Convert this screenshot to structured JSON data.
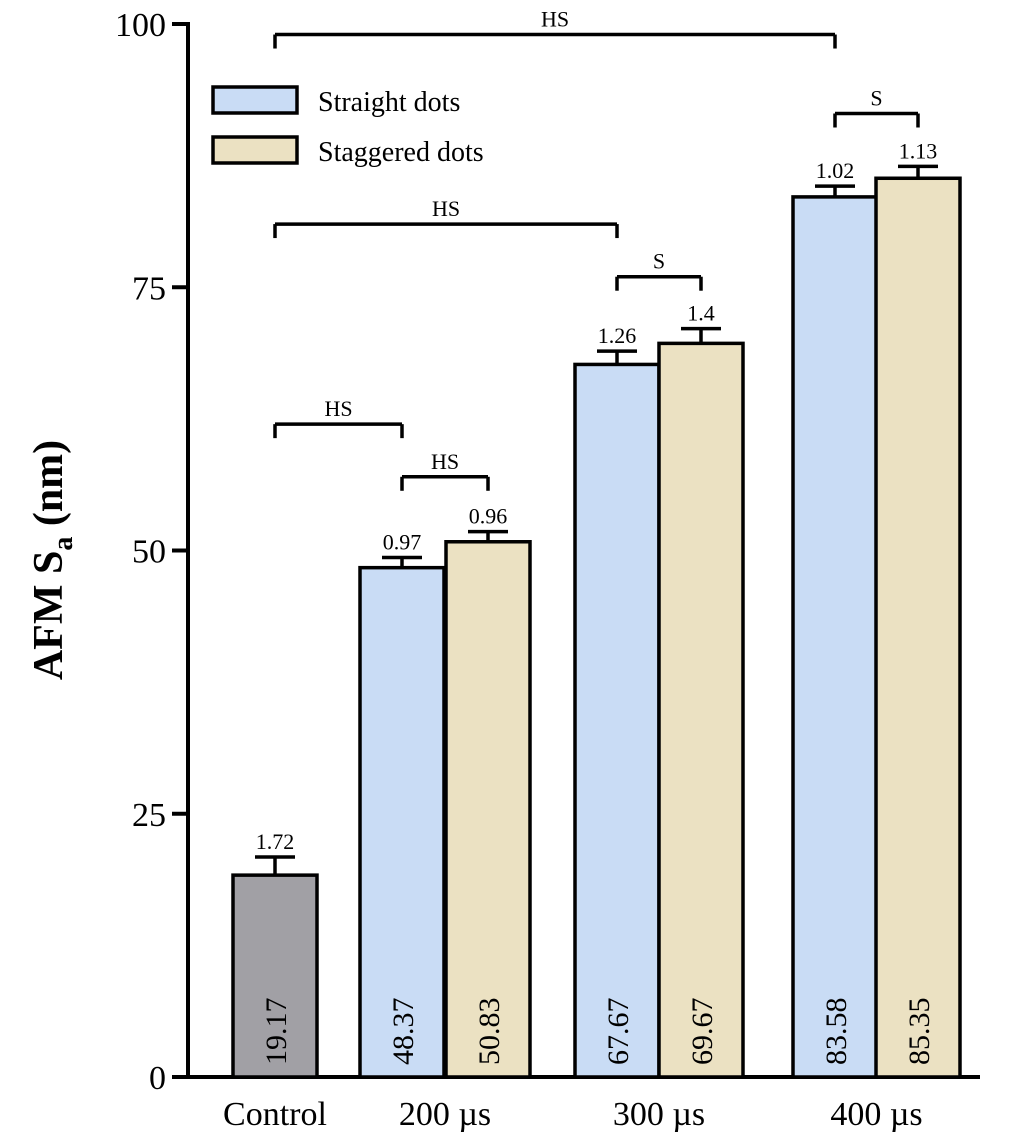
{
  "chart_data": {
    "type": "bar",
    "ylabel": "AFM S",
    "ylabel_sub": "a",
    "ylabel_unit": " (nm)",
    "ylim": [
      0,
      100
    ],
    "yticks": [
      "0",
      "25",
      "50",
      "75",
      "100"
    ],
    "grid": false,
    "legend_position": "top-left",
    "categories": [
      "Control",
      "200 µs",
      "300 µs",
      "400 µs"
    ],
    "series": [
      {
        "name": "",
        "color": "#a1a0a5",
        "values": [
          19.17,
          null,
          null,
          null
        ],
        "errors": [
          1.72,
          null,
          null,
          null
        ],
        "labels": [
          "19.17",
          "",
          "",
          ""
        ],
        "error_labels": [
          "1.72",
          "",
          "",
          ""
        ]
      },
      {
        "name": "Straight dots",
        "color": "#c9dcf5",
        "values": [
          null,
          48.37,
          67.67,
          83.58
        ],
        "errors": [
          null,
          0.97,
          1.26,
          1.02
        ],
        "labels": [
          "",
          "48.37",
          "67.67",
          "83.58"
        ],
        "error_labels": [
          "",
          "0.97",
          "1.26",
          "1.02"
        ]
      },
      {
        "name": "Staggered dots",
        "color": "#ebe1c2",
        "values": [
          null,
          50.83,
          69.67,
          85.35
        ],
        "errors": [
          null,
          0.96,
          1.4,
          1.13
        ],
        "labels": [
          "",
          "50.83",
          "69.67",
          "85.35"
        ],
        "error_labels": [
          "",
          "0.96",
          "1.4",
          "1.13"
        ]
      }
    ],
    "significance": [
      {
        "from": [
          0,
          0
        ],
        "to": [
          3,
          1
        ],
        "y": 99,
        "label": "HS"
      },
      {
        "from": [
          3,
          1
        ],
        "to": [
          3,
          2
        ],
        "y": 91.5,
        "label": "S"
      },
      {
        "from": [
          0,
          0
        ],
        "to": [
          2,
          1
        ],
        "y": 81,
        "label": "HS"
      },
      {
        "from": [
          2,
          1
        ],
        "to": [
          2,
          2
        ],
        "y": 76,
        "label": "S"
      },
      {
        "from": [
          0,
          0
        ],
        "to": [
          1,
          1
        ],
        "y": 62,
        "label": "HS"
      },
      {
        "from": [
          1,
          1
        ],
        "to": [
          1,
          2
        ],
        "y": 57,
        "label": "HS"
      }
    ]
  }
}
